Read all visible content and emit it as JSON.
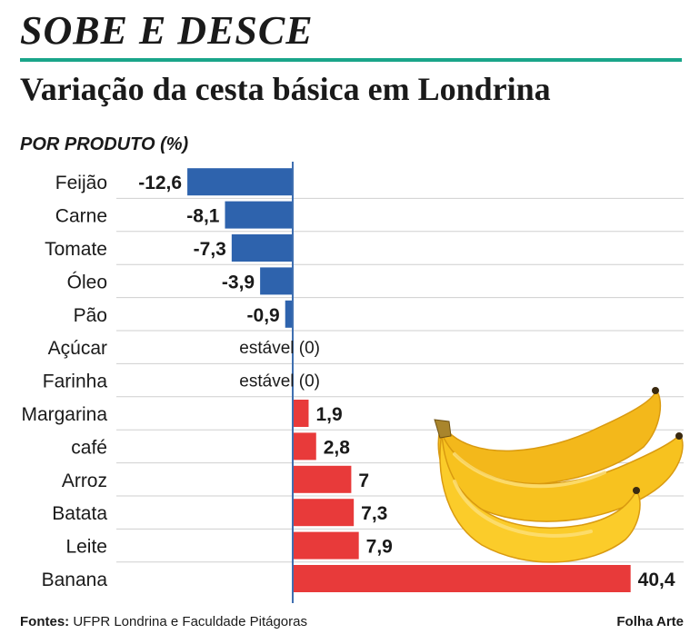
{
  "kicker": "SOBE E DESCE",
  "headline": "Variação da cesta básica em Londrina",
  "subtitle": "POR PRODUTO (%)",
  "footer": {
    "sources_label": "Fontes:",
    "sources_text": "UFPR Londrina e Faculdade Pitágoras",
    "credit": "Folha Arte"
  },
  "colors": {
    "negative": "#2e63ad",
    "positive": "#e83a3a",
    "rule": "#1aa58a",
    "axis": "#3f6fb0",
    "grid": "#cfcfcf",
    "banana": "#f7c21f"
  },
  "illustration": "banana-bunch",
  "chart_data": {
    "type": "bar",
    "orientation": "horizontal",
    "categories": [
      "Feijão",
      "Carne",
      "Tomate",
      "Óleo",
      "Pão",
      "Açúcar",
      "Farinha",
      "Margarina",
      "café",
      "Arroz",
      "Batata",
      "Leite",
      "Banana"
    ],
    "values": [
      -12.6,
      -8.1,
      -7.3,
      -3.9,
      -0.9,
      0,
      0,
      1.9,
      2.8,
      7,
      7.3,
      7.9,
      40.4
    ],
    "labels": [
      "-12,6",
      "-8,1",
      "-7,3",
      "-3,9",
      "-0,9",
      "estável (0)",
      "estável (0)",
      "1,9",
      "2,8",
      "7",
      "7,3",
      "7,9",
      "40,4"
    ],
    "xlim": [
      -12.6,
      40.4
    ],
    "grid": true
  }
}
